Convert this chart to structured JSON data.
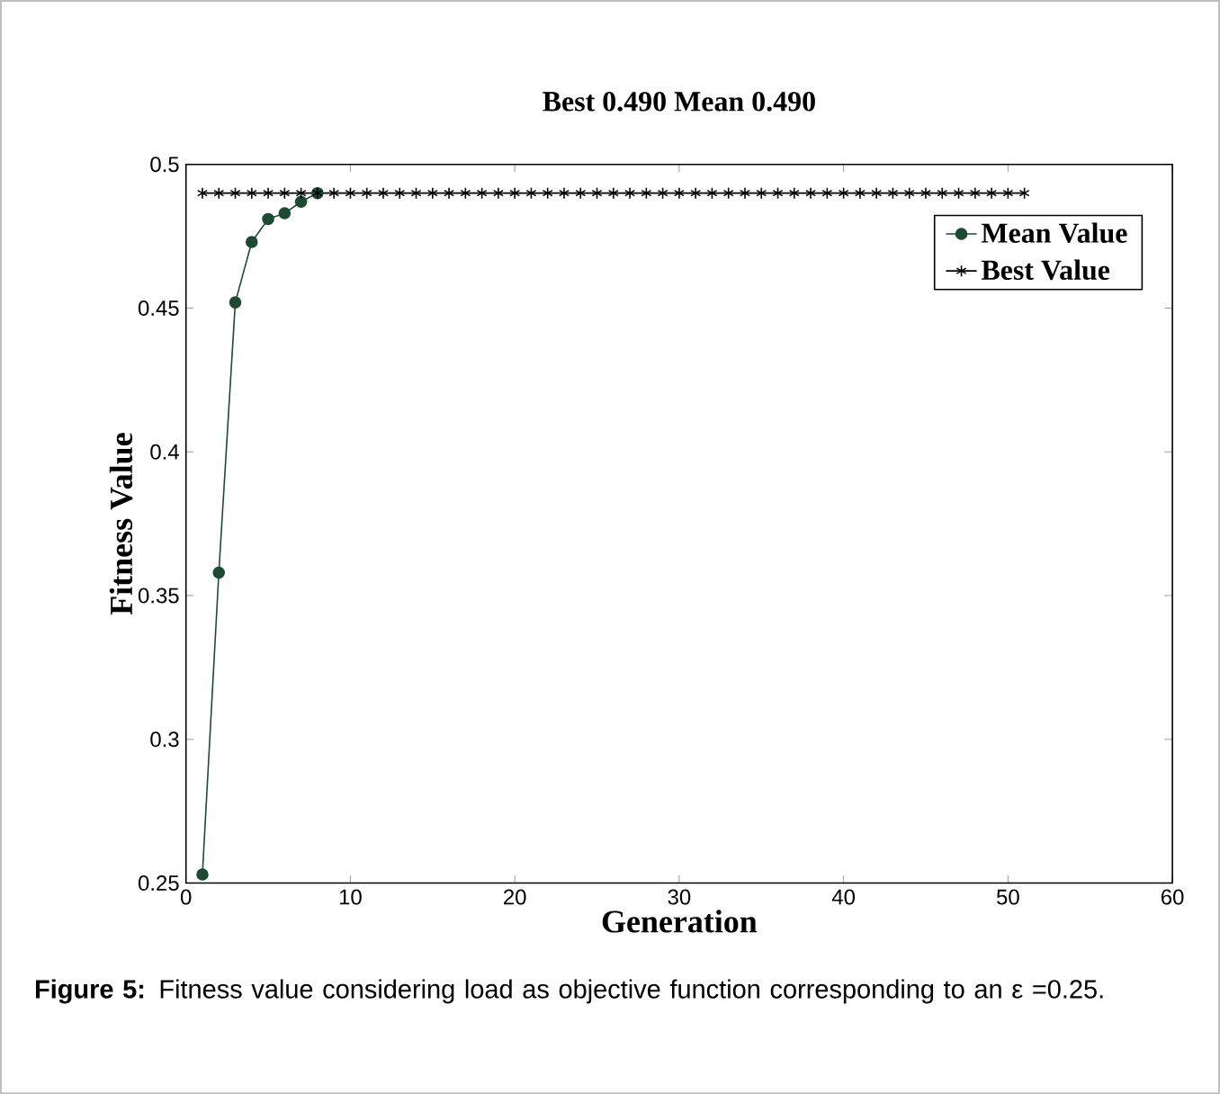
{
  "chart_data": {
    "type": "line",
    "title": "Best 0.490   Mean 0.490",
    "xlabel": "Generation",
    "ylabel": "Fitness Value",
    "annotations": [
      "**Figure 5:** Fitness value considering load as objective function corresponding to an ε =0.25."
    ],
    "x": [
      1,
      2,
      3,
      4,
      5,
      6,
      7,
      8,
      9,
      10,
      11,
      12,
      13,
      14,
      15,
      16,
      17,
      18,
      19,
      20,
      21,
      22,
      23,
      24,
      25,
      26,
      27,
      28,
      29,
      30,
      31,
      32,
      33,
      34,
      35,
      36,
      37,
      38,
      39,
      40,
      41,
      42,
      43,
      44,
      45,
      46,
      47,
      48,
      49,
      50,
      51
    ],
    "series": [
      {
        "name": "Mean Value",
        "color": "#1e4a34",
        "marker": "circle",
        "values": [
          0.253,
          0.358,
          0.452,
          0.473,
          0.481,
          0.483,
          0.487,
          0.49,
          null,
          null,
          null,
          null,
          null,
          null,
          null,
          null,
          null,
          null,
          null,
          null,
          null,
          null,
          null,
          null,
          null,
          null,
          null,
          null,
          null,
          null,
          null,
          null,
          null,
          null,
          null,
          null,
          null,
          null,
          null,
          null,
          null,
          null,
          null,
          null,
          null,
          null,
          null,
          null,
          null,
          null,
          null
        ]
      },
      {
        "name": "Best Value",
        "color": "#000000",
        "marker": "cross",
        "values": [
          0.49,
          0.49,
          0.49,
          0.49,
          0.49,
          0.49,
          0.49,
          0.49,
          0.49,
          0.49,
          0.49,
          0.49,
          0.49,
          0.49,
          0.49,
          0.49,
          0.49,
          0.49,
          0.49,
          0.49,
          0.49,
          0.49,
          0.49,
          0.49,
          0.49,
          0.49,
          0.49,
          0.49,
          0.49,
          0.49,
          0.49,
          0.49,
          0.49,
          0.49,
          0.49,
          0.49,
          0.49,
          0.49,
          0.49,
          0.49,
          0.49,
          0.49,
          0.49,
          0.49,
          0.49,
          0.49,
          0.49,
          0.49,
          0.49,
          0.49,
          0.49
        ]
      }
    ],
    "xlim": [
      0,
      60
    ],
    "ylim": [
      0.25,
      0.5
    ],
    "xticks": [
      0,
      10,
      20,
      30,
      40,
      50,
      60
    ],
    "yticks": [
      0.25,
      0.3,
      0.35,
      0.4,
      0.45,
      0.5
    ],
    "legend": "top right",
    "line_style": "solid"
  }
}
